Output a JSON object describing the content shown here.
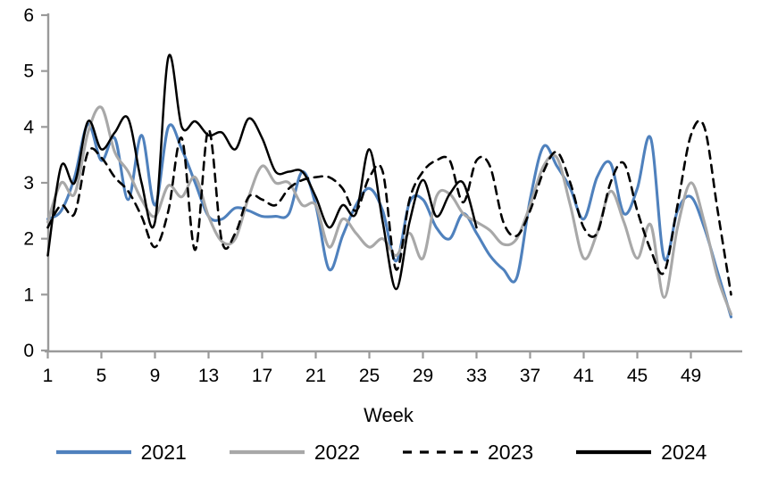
{
  "chart_data": {
    "type": "line",
    "title": "",
    "xlabel": "Week",
    "ylim": [
      0,
      6
    ],
    "y_ticks": [
      0,
      1,
      2,
      3,
      4,
      5,
      6
    ],
    "x_ticks": [
      1,
      5,
      9,
      13,
      17,
      21,
      25,
      29,
      33,
      37,
      41,
      45,
      49
    ],
    "x_range": [
      1,
      52
    ],
    "grid": false,
    "legend_position": "bottom",
    "axis_color": "#9a9a9a",
    "series": [
      {
        "name": "2021",
        "color": "#4F81BD",
        "style": "solid",
        "start_week": 1,
        "values": [
          2.35,
          2.5,
          3.1,
          4.05,
          3.4,
          3.8,
          2.7,
          3.85,
          2.6,
          4.0,
          3.6,
          3.0,
          2.4,
          2.35,
          2.55,
          2.5,
          2.4,
          2.4,
          2.45,
          3.2,
          2.6,
          1.45,
          2.05,
          2.6,
          2.9,
          2.5,
          1.6,
          2.65,
          2.7,
          2.2,
          2.0,
          2.45,
          2.1,
          1.7,
          1.45,
          1.3,
          2.7,
          3.65,
          3.3,
          2.9,
          2.35,
          3.1,
          3.35,
          2.45,
          2.9,
          3.8,
          1.65,
          2.5,
          2.75,
          2.2,
          1.4,
          0.6
        ]
      },
      {
        "name": "2022",
        "color": "#A8A8A8",
        "style": "solid",
        "start_week": 1,
        "values": [
          2.3,
          3.0,
          2.8,
          3.9,
          4.35,
          3.55,
          3.2,
          2.7,
          2.4,
          2.95,
          2.75,
          3.1,
          2.4,
          1.95,
          2.0,
          2.75,
          3.3,
          3.0,
          3.0,
          2.6,
          2.6,
          1.85,
          2.35,
          2.1,
          1.85,
          2.0,
          1.7,
          2.1,
          1.65,
          2.75,
          2.8,
          2.45,
          2.3,
          2.15,
          1.9,
          2.0,
          2.6,
          3.3,
          3.45,
          2.6,
          1.65,
          2.1,
          2.85,
          2.3,
          1.65,
          2.25,
          0.95,
          2.2,
          3.0,
          2.3,
          1.3,
          0.65
        ]
      },
      {
        "name": "2023",
        "color": "#000000",
        "style": "dashed",
        "start_week": 1,
        "values": [
          2.2,
          2.6,
          2.45,
          3.55,
          3.45,
          3.1,
          2.85,
          2.4,
          1.85,
          2.5,
          3.8,
          1.8,
          3.95,
          1.95,
          2.1,
          2.75,
          2.7,
          2.6,
          2.9,
          3.05,
          3.1,
          3.1,
          2.9,
          2.5,
          3.1,
          3.2,
          1.45,
          2.7,
          3.2,
          3.4,
          3.4,
          2.65,
          3.4,
          3.3,
          2.3,
          2.05,
          2.5,
          3.2,
          3.55,
          3.0,
          2.2,
          2.1,
          3.0,
          3.35,
          2.5,
          1.8,
          1.4,
          2.6,
          3.85,
          4.0,
          2.5,
          1.0
        ]
      },
      {
        "name": "2024",
        "color": "#000000",
        "style": "solid",
        "start_week": 1,
        "values": [
          1.7,
          3.3,
          3.0,
          4.1,
          3.6,
          3.9,
          4.15,
          3.0,
          2.3,
          5.25,
          4.0,
          4.1,
          3.85,
          3.9,
          3.6,
          4.15,
          3.8,
          3.2,
          3.2,
          3.2,
          2.75,
          2.2,
          2.6,
          2.45,
          3.6,
          2.3,
          1.1,
          2.3,
          3.05,
          2.4,
          2.8,
          3.0,
          2.2
        ]
      }
    ]
  },
  "legend": {
    "items": [
      {
        "label": "2021"
      },
      {
        "label": "2022"
      },
      {
        "label": "2023"
      },
      {
        "label": "2024"
      }
    ]
  },
  "labels": {
    "x_axis_title": "Week"
  }
}
